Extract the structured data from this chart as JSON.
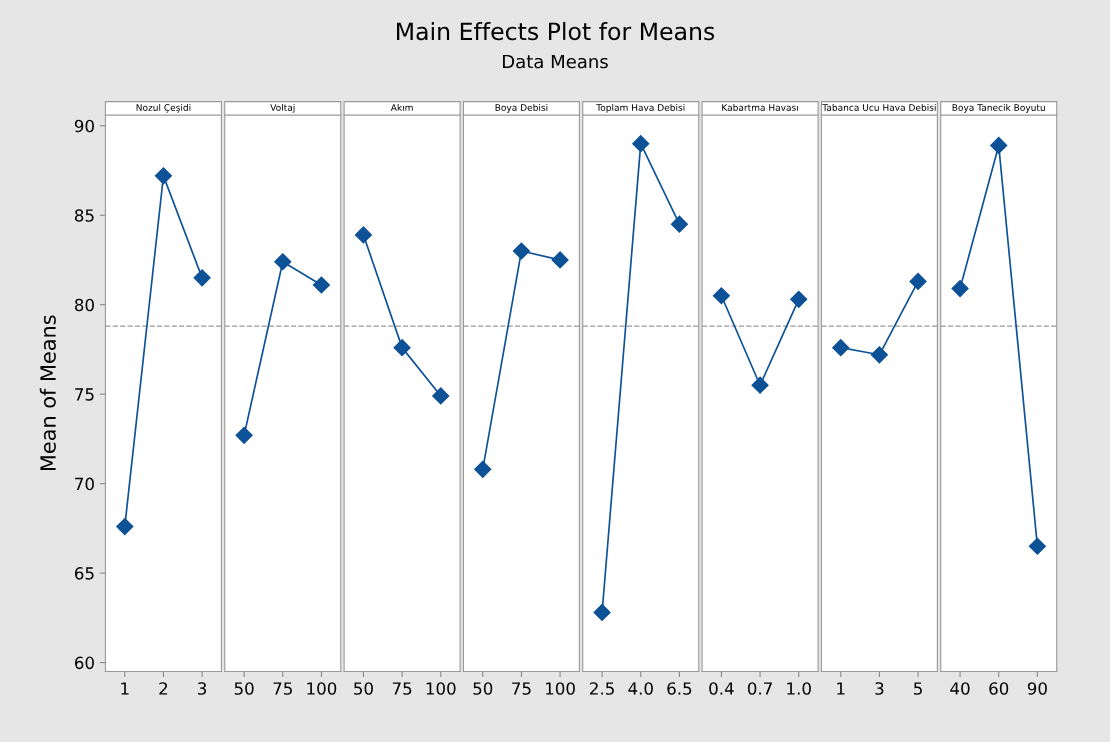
{
  "chart_data": [
    {
      "type": "line",
      "annotations": [
        "Main Effects Plot for Means",
        "Data Means"
      ],
      "ylabel": "Mean of Means",
      "title": "Nozul Çeşidi",
      "categories": [
        "1",
        "2",
        "3"
      ],
      "series": [
        {
          "color": "#0d5197",
          "values": [
            67.6,
            87.2,
            81.5
          ]
        }
      ],
      "ylim": [
        59.5,
        90.6
      ],
      "yticks": [
        60,
        65,
        70,
        75,
        80,
        85,
        90
      ],
      "ref_lines": [
        {
          "axis": "y",
          "value": 78.8,
          "color": "#999999",
          "line_style": "dashed"
        }
      ],
      "marker": "diamond"
    },
    {
      "type": "line",
      "title": "Voltaj",
      "categories": [
        "50",
        "75",
        "100"
      ],
      "series": [
        {
          "color": "#0d5197",
          "values": [
            72.7,
            82.4,
            81.1
          ]
        }
      ],
      "ylim": [
        59.5,
        90.6
      ],
      "yticks": [
        60,
        65,
        70,
        75,
        80,
        85,
        90
      ],
      "tick_labels": "x",
      "ref_lines": [
        {
          "axis": "y",
          "value": 78.8,
          "color": "#999999",
          "line_style": "dashed"
        }
      ],
      "marker": "diamond"
    },
    {
      "type": "line",
      "title": "Akım",
      "categories": [
        "50",
        "75",
        "100"
      ],
      "series": [
        {
          "color": "#0d5197",
          "values": [
            83.9,
            77.6,
            74.9
          ]
        }
      ],
      "ylim": [
        59.5,
        90.6
      ],
      "yticks": [
        60,
        65,
        70,
        75,
        80,
        85,
        90
      ],
      "tick_labels": "x",
      "ref_lines": [
        {
          "axis": "y",
          "value": 78.8,
          "color": "#999999",
          "line_style": "dashed"
        }
      ],
      "marker": "diamond"
    },
    {
      "type": "line",
      "title": "Boya Debisi",
      "categories": [
        "50",
        "75",
        "100"
      ],
      "series": [
        {
          "color": "#0d5197",
          "values": [
            70.8,
            83.0,
            82.5
          ]
        }
      ],
      "ylim": [
        59.5,
        90.6
      ],
      "yticks": [
        60,
        65,
        70,
        75,
        80,
        85,
        90
      ],
      "tick_labels": "x",
      "ref_lines": [
        {
          "axis": "y",
          "value": 78.8,
          "color": "#999999",
          "line_style": "dashed"
        }
      ],
      "marker": "diamond"
    },
    {
      "type": "line",
      "title": "Toplam Hava Debisi",
      "categories": [
        "2.5",
        "4.0",
        "6.5"
      ],
      "series": [
        {
          "color": "#0d5197",
          "values": [
            62.8,
            89.0,
            84.5
          ]
        }
      ],
      "ylim": [
        59.5,
        90.6
      ],
      "yticks": [
        60,
        65,
        70,
        75,
        80,
        85,
        90
      ],
      "tick_labels": "x",
      "ref_lines": [
        {
          "axis": "y",
          "value": 78.8,
          "color": "#999999",
          "line_style": "dashed"
        }
      ],
      "marker": "diamond"
    },
    {
      "type": "line",
      "title": "Kabartma Havası",
      "categories": [
        "0.4",
        "0.7",
        "1.0"
      ],
      "series": [
        {
          "color": "#0d5197",
          "values": [
            80.5,
            75.5,
            80.3
          ]
        }
      ],
      "ylim": [
        59.5,
        90.6
      ],
      "yticks": [
        60,
        65,
        70,
        75,
        80,
        85,
        90
      ],
      "tick_labels": "x",
      "ref_lines": [
        {
          "axis": "y",
          "value": 78.8,
          "color": "#999999",
          "line_style": "dashed"
        }
      ],
      "marker": "diamond"
    },
    {
      "type": "line",
      "title": "Tabanca Ucu Hava Debisi",
      "categories": [
        "1",
        "3",
        "5"
      ],
      "series": [
        {
          "color": "#0d5197",
          "values": [
            77.6,
            77.2,
            81.3
          ]
        }
      ],
      "ylim": [
        59.5,
        90.6
      ],
      "yticks": [
        60,
        65,
        70,
        75,
        80,
        85,
        90
      ],
      "tick_labels": "x",
      "ref_lines": [
        {
          "axis": "y",
          "value": 78.8,
          "color": "#999999",
          "line_style": "dashed"
        }
      ],
      "marker": "diamond"
    },
    {
      "type": "line",
      "title": "Boya Tanecik Boyutu",
      "categories": [
        "40",
        "60",
        "90"
      ],
      "series": [
        {
          "color": "#0d5197",
          "values": [
            80.9,
            88.9,
            66.5
          ]
        }
      ],
      "ylim": [
        59.5,
        90.6
      ],
      "yticks": [
        60,
        65,
        70,
        75,
        80,
        85,
        90
      ],
      "tick_labels": "x",
      "ref_lines": [
        {
          "axis": "y",
          "value": 78.8,
          "color": "#999999",
          "line_style": "dashed"
        }
      ],
      "marker": "diamond"
    }
  ]
}
